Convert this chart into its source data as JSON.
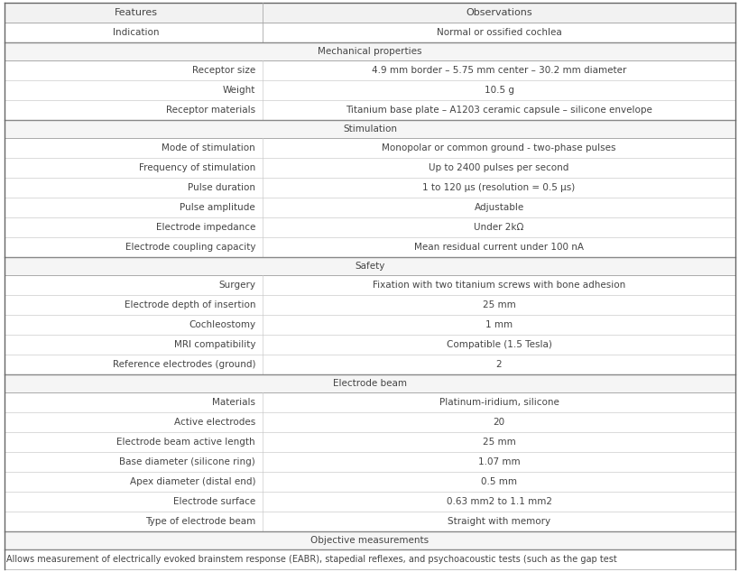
{
  "header": [
    "Features",
    "Observations"
  ],
  "indication_row": [
    "Indication",
    "Normal or ossified cochlea"
  ],
  "sections": [
    {
      "section_title": "Mechanical properties",
      "rows": [
        [
          "Receptor size",
          "4.9 mm border – 5.75 mm center – 30.2 mm diameter"
        ],
        [
          "Weight",
          "10.5 g"
        ],
        [
          "Receptor materials",
          "Titanium base plate – A1203 ceramic capsule – silicone envelope"
        ]
      ]
    },
    {
      "section_title": "Stimulation",
      "rows": [
        [
          "Mode of stimulation",
          "Monopolar or common ground - two-phase pulses"
        ],
        [
          "Frequency of stimulation",
          "Up to 2400 pulses per second"
        ],
        [
          "Pulse duration",
          "1 to 120 μs (resolution = 0.5 μs)"
        ],
        [
          "Pulse amplitude",
          "Adjustable"
        ],
        [
          "Electrode impedance",
          "Under 2kΩ"
        ],
        [
          "Electrode coupling capacity",
          "Mean residual current under 100 nA"
        ]
      ]
    },
    {
      "section_title": "Safety",
      "rows": [
        [
          "Surgery",
          "Fixation with two titanium screws with bone adhesion"
        ],
        [
          "Electrode depth of insertion",
          "25 mm"
        ],
        [
          "Cochleostomy",
          "1 mm"
        ],
        [
          "MRI compatibility",
          "Compatible (1.5 Tesla)"
        ],
        [
          "Reference electrodes (ground)",
          "2"
        ]
      ]
    },
    {
      "section_title": "Electrode beam",
      "rows": [
        [
          "Materials",
          "Platinum-iridium, silicone"
        ],
        [
          "Active electrodes",
          "20"
        ],
        [
          "Electrode beam active length",
          "25 mm"
        ],
        [
          "Base diameter (silicone ring)",
          "1.07 mm"
        ],
        [
          "Apex diameter (distal end)",
          "0.5 mm"
        ],
        [
          "Electrode surface",
          "0.63 mm2 to 1.1 mm2"
        ],
        [
          "Type of electrode beam",
          "Straight with memory"
        ]
      ]
    },
    {
      "section_title": "Objective measurements",
      "rows": []
    }
  ],
  "footer_text": "Allows measurement of electrically evoked brainstem response (EABR), stapedial reflexes, and psychoacoustic tests (such as the gap test",
  "bg_color": "#ffffff",
  "text_color": "#444444",
  "line_color_light": "#bbbbbb",
  "line_color_dark": "#888888",
  "font_size": 7.5,
  "header_font_size": 8.0,
  "col_split": 0.355
}
